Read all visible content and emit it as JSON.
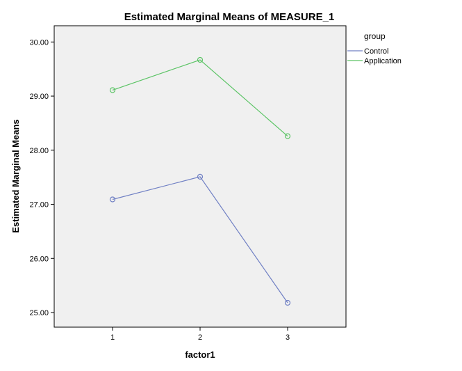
{
  "chart_data": {
    "type": "line",
    "title": "Estimated Marginal Means of MEASURE_1",
    "xlabel": "factor1",
    "ylabel": "Estimated Marginal Means",
    "categories": [
      "1",
      "2",
      "3"
    ],
    "ylim": [
      24.73,
      30.3
    ],
    "yticks": [
      "25.00",
      "26.00",
      "27.00",
      "28.00",
      "29.00",
      "30.00"
    ],
    "legend_title": "group",
    "legend_position": "right",
    "grid": false,
    "series": [
      {
        "name": "Control",
        "color": "#7080c4",
        "values": [
          27.09,
          27.51,
          25.18
        ]
      },
      {
        "name": "Application",
        "color": "#5cc466",
        "values": [
          29.11,
          29.67,
          28.26
        ]
      }
    ]
  }
}
